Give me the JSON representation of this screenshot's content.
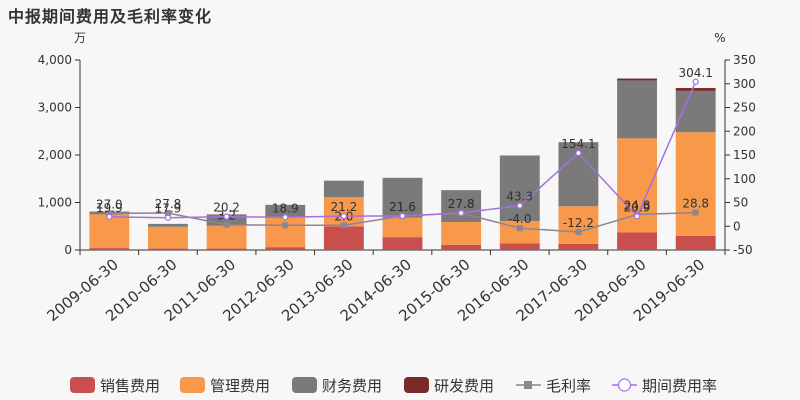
{
  "chart_data": {
    "type": "bar",
    "title": "中报期间费用及毛利率变化",
    "left_unit": "万",
    "right_unit": "%",
    "categories": [
      "2009-06-30",
      "2010-06-30",
      "2011-06-30",
      "2012-06-30",
      "2013-06-30",
      "2014-06-30",
      "2015-06-30",
      "2016-06-30",
      "2017-06-30",
      "2018-06-30",
      "2019-06-30"
    ],
    "y_left": {
      "min": 0,
      "max": 4000,
      "ticks": [
        0,
        1000,
        2000,
        3000,
        4000
      ],
      "tick_labels": [
        "0",
        "1,000",
        "2,000",
        "3,000",
        "4,000"
      ]
    },
    "y_right": {
      "min": -50,
      "max": 350,
      "ticks": [
        -50,
        0,
        50,
        100,
        150,
        200,
        250,
        300,
        350
      ],
      "tick_labels": [
        "-50",
        "0",
        "50",
        "100",
        "150",
        "200",
        "250",
        "300",
        "350"
      ]
    },
    "series": [
      {
        "name": "销售费用",
        "kind": "bar",
        "color": "#c94e4e",
        "values": [
          40,
          30,
          30,
          60,
          500,
          270,
          110,
          140,
          130,
          370,
          300
        ]
      },
      {
        "name": "管理费用",
        "kind": "bar",
        "color": "#f7984a",
        "values": [
          710,
          460,
          480,
          640,
          610,
          410,
          480,
          470,
          790,
          1980,
          2180
        ]
      },
      {
        "name": "财务费用",
        "kind": "bar",
        "color": "#7a7a7a",
        "values": [
          60,
          60,
          240,
          250,
          350,
          840,
          670,
          1380,
          1350,
          1220,
          870
        ]
      },
      {
        "name": "研发费用",
        "kind": "bar",
        "color": "#7b2a2a",
        "values": [
          0,
          0,
          0,
          0,
          0,
          0,
          0,
          0,
          0,
          40,
          60
        ]
      },
      {
        "name": "毛利率",
        "kind": "line",
        "color": "#8e8494",
        "values": [
          27.0,
          27.8,
          3.2,
          2.0,
          2.0,
          21.6,
          27.8,
          -4.0,
          -12.2,
          24.8,
          28.8
        ],
        "labels": [
          "27.0",
          "27.8",
          "3.2",
          "",
          "2.0",
          "21.6",
          "27.8",
          "-4.0",
          "-12.2",
          "24.8",
          "28.8"
        ]
      },
      {
        "name": "期间费用率",
        "kind": "line",
        "color": "#a86fe0",
        "values": [
          19.9,
          17.9,
          20.2,
          18.9,
          21.2,
          21.6,
          27.8,
          43.3,
          154.1,
          20.9,
          304.1
        ],
        "labels": [
          "19.9",
          "17.9",
          "20.2",
          "18.9",
          "21.2",
          "21.6",
          "27.8",
          "43.3",
          "154.1",
          "20.9",
          "304.1"
        ]
      }
    ],
    "legend_position": "bottom",
    "grid": false
  }
}
